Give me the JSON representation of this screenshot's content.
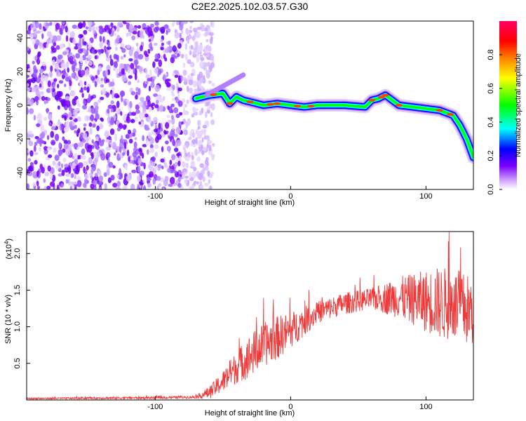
{
  "chart_data": [
    {
      "type": "heatmap",
      "title": "C2E2.2025.102.03.57.G30",
      "xlabel": "Height of straight line (km)",
      "ylabel": "Frequency (Hz)",
      "xlim": [
        -195,
        135
      ],
      "ylim": [
        -50,
        50
      ],
      "xticks": [
        -100,
        0,
        100
      ],
      "yticks": [
        40,
        20,
        0,
        -20,
        -40
      ],
      "grid": false,
      "colorbar": {
        "label": "Normalized spectral amplitude",
        "range": [
          0,
          1
        ],
        "ticks": [
          0.0,
          0.2,
          0.4,
          0.6,
          0.8
        ],
        "tick_labels": [
          "0.0",
          "0.2",
          "0.4",
          "0.6",
          "0.8"
        ],
        "colormap": [
          "#ffffff",
          "#cc99ff",
          "#7a00ff",
          "#0000ff",
          "#00ffff",
          "#00ff00",
          "#ffff00",
          "#ff8000",
          "#ff0000",
          "#ff0066"
        ]
      },
      "ridge": {
        "description_of_values": "frequency of strongest spectral amplitude vs height",
        "x": [
          -70,
          -60,
          -50,
          -45,
          -40,
          -35,
          -30,
          -20,
          -10,
          0,
          10,
          20,
          40,
          55,
          60,
          65,
          70,
          75,
          80,
          90,
          100,
          110,
          120,
          125,
          130,
          135
        ],
        "y": [
          4,
          6,
          7,
          1,
          5,
          3,
          2,
          0,
          1,
          0,
          -1,
          0,
          0,
          -1,
          3,
          4,
          6,
          3,
          0,
          -1,
          -2,
          -3,
          -6,
          -12,
          -20,
          -31
        ]
      },
      "noise_region": {
        "x_range": [
          -195,
          -65
        ],
        "y_range": [
          -50,
          50
        ]
      }
    },
    {
      "type": "line",
      "xlabel": "Height of straight line (km)",
      "ylabel": "SNR (10 * v/v)",
      "y_multiplier": "(x10",
      "y_multiplier_exp": "4",
      "xlim": [
        -195,
        135
      ],
      "ylim": [
        0,
        2.3
      ],
      "xticks": [
        -100,
        0,
        100
      ],
      "yticks": [
        0.5,
        1.0,
        1.5,
        2.0
      ],
      "ytick_labels": [
        "0.5",
        "1.0",
        "1.5",
        "2.0"
      ],
      "series_color": "#f03a3a",
      "grid": false,
      "envelope": {
        "x": [
          -195,
          -100,
          -70,
          -60,
          -50,
          -40,
          -30,
          -20,
          -10,
          0,
          20,
          40,
          60,
          80,
          100,
          120,
          135
        ],
        "y": [
          0.02,
          0.03,
          0.04,
          0.1,
          0.25,
          0.45,
          0.6,
          0.75,
          0.85,
          0.95,
          1.2,
          1.32,
          1.38,
          1.4,
          1.35,
          1.3,
          1.2
        ]
      },
      "noise_amplitude": {
        "x": [
          -195,
          -70,
          -50,
          -30,
          -10,
          20,
          60,
          90,
          110,
          135
        ],
        "y": [
          0.01,
          0.02,
          0.15,
          0.3,
          0.3,
          0.15,
          0.15,
          0.35,
          0.5,
          0.5
        ]
      }
    }
  ]
}
